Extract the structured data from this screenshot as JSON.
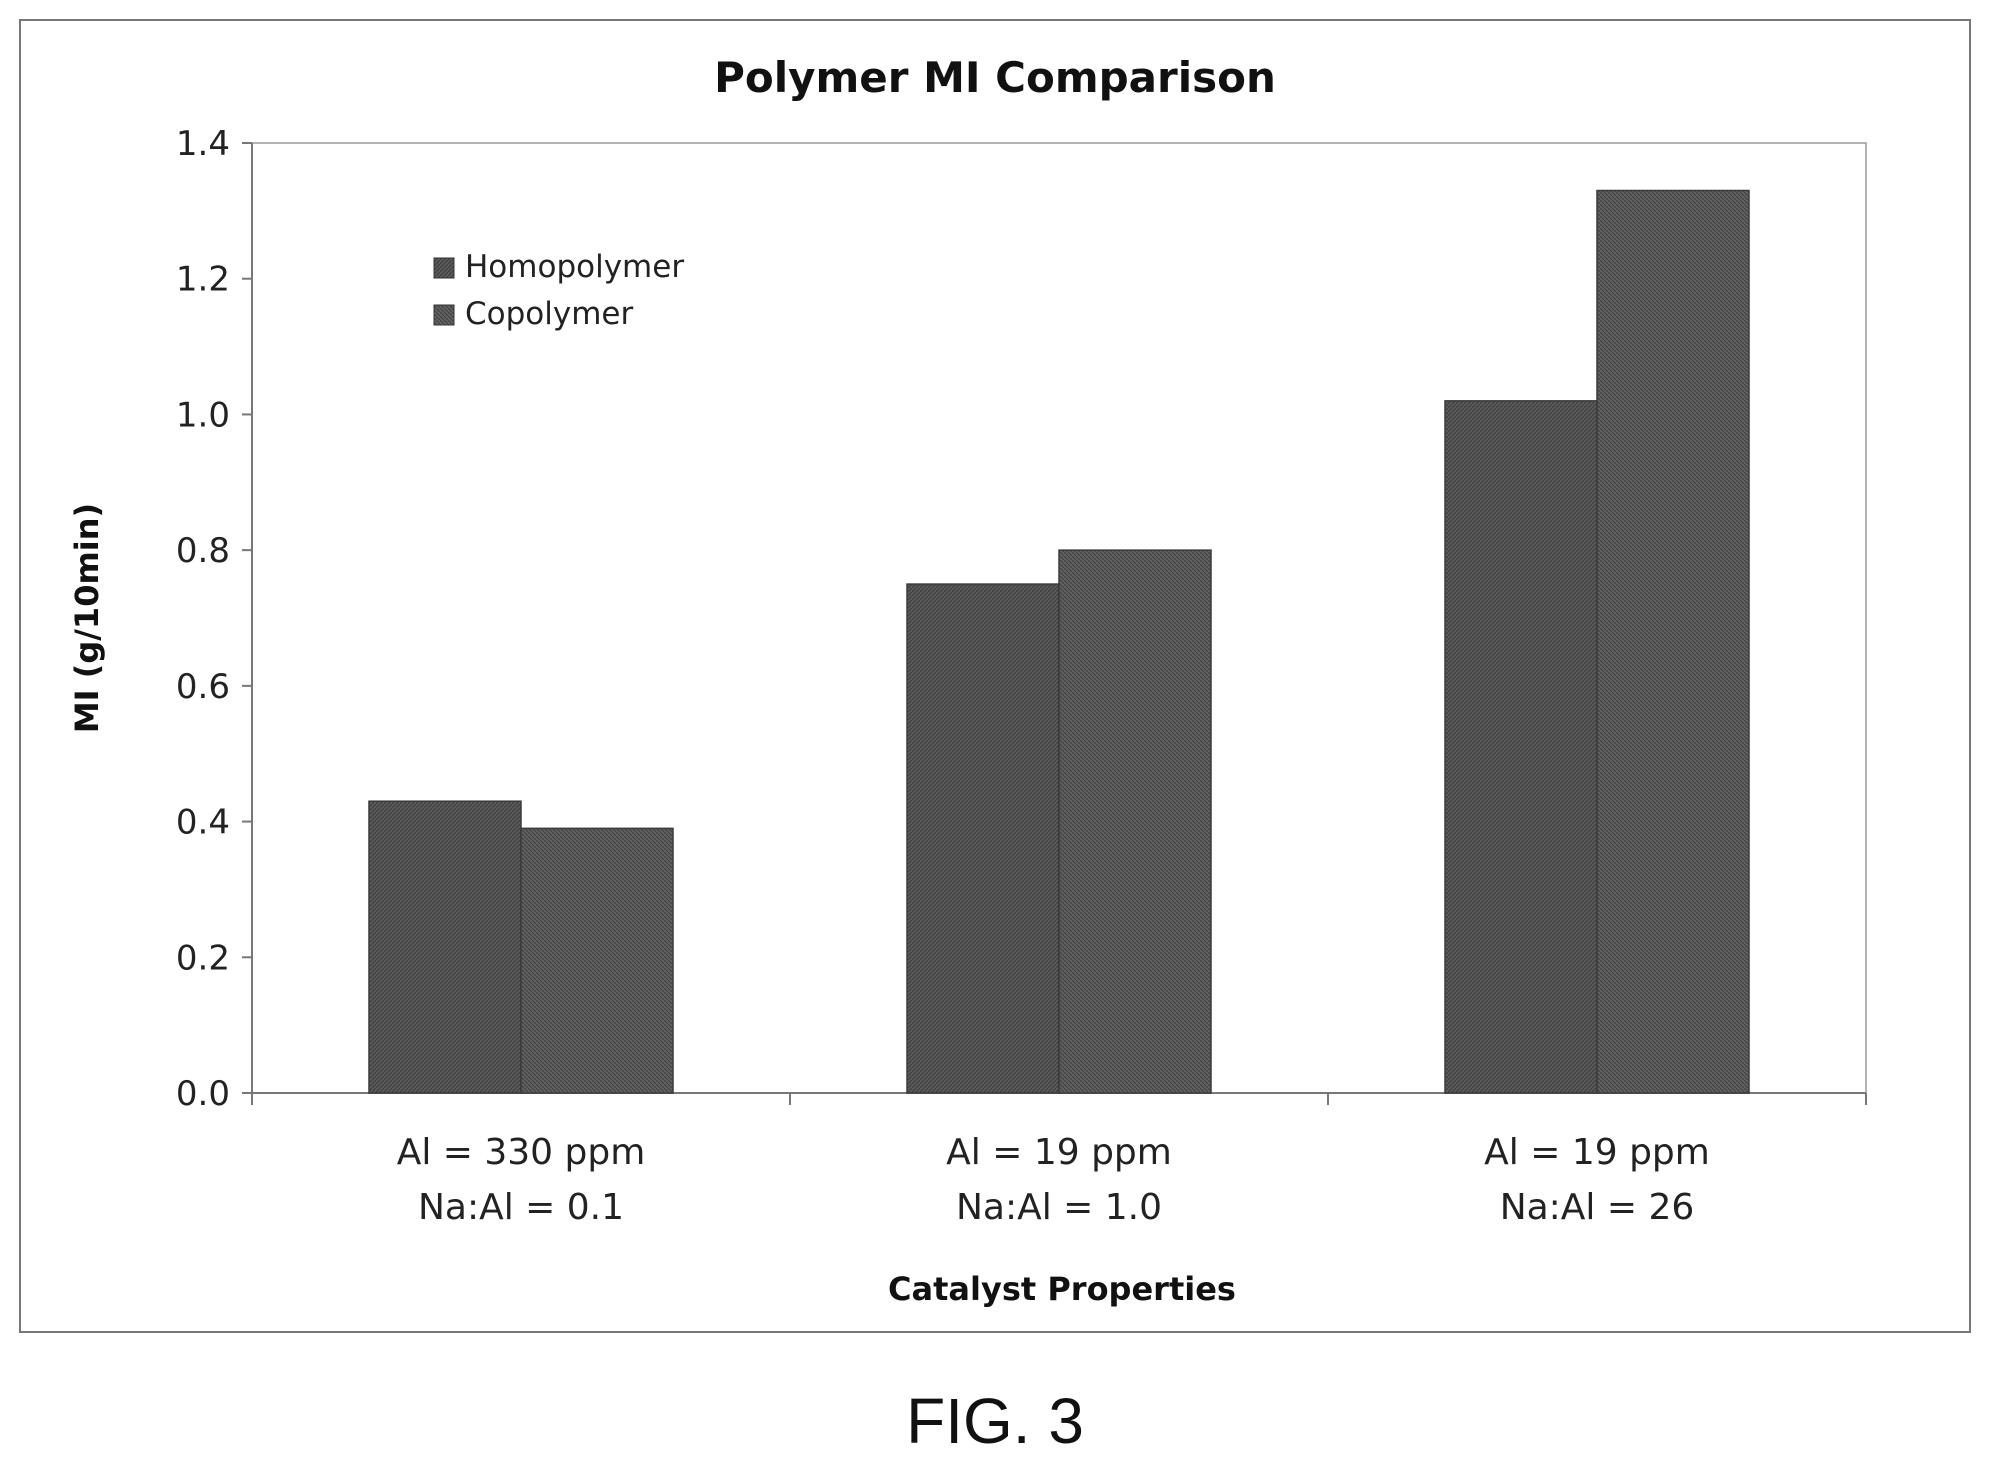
{
  "figure_label": "FIG. 3",
  "chart_data": {
    "type": "bar",
    "title": "Polymer MI Comparison",
    "xlabel": "Catalyst Properties",
    "ylabel": "MI (g/10min)",
    "ylim": [
      0,
      1.4
    ],
    "yticks": [
      "0.0",
      "0.2",
      "0.4",
      "0.6",
      "0.8",
      "1.0",
      "1.2",
      "1.4"
    ],
    "categories": [
      [
        "Al = 330 ppm",
        "Na:Al = 0.1"
      ],
      [
        "Al = 19 ppm",
        "Na:Al = 1.0"
      ],
      [
        "Al = 19 ppm",
        "Na:Al = 26"
      ]
    ],
    "series": [
      {
        "name": "Homopolymer",
        "values": [
          0.43,
          0.75,
          1.02
        ],
        "color": "#555555"
      },
      {
        "name": "Copolymer",
        "values": [
          0.39,
          0.8,
          1.33
        ],
        "color": "#5e5e5e"
      }
    ],
    "legend_position": "top-left",
    "grid": false
  }
}
